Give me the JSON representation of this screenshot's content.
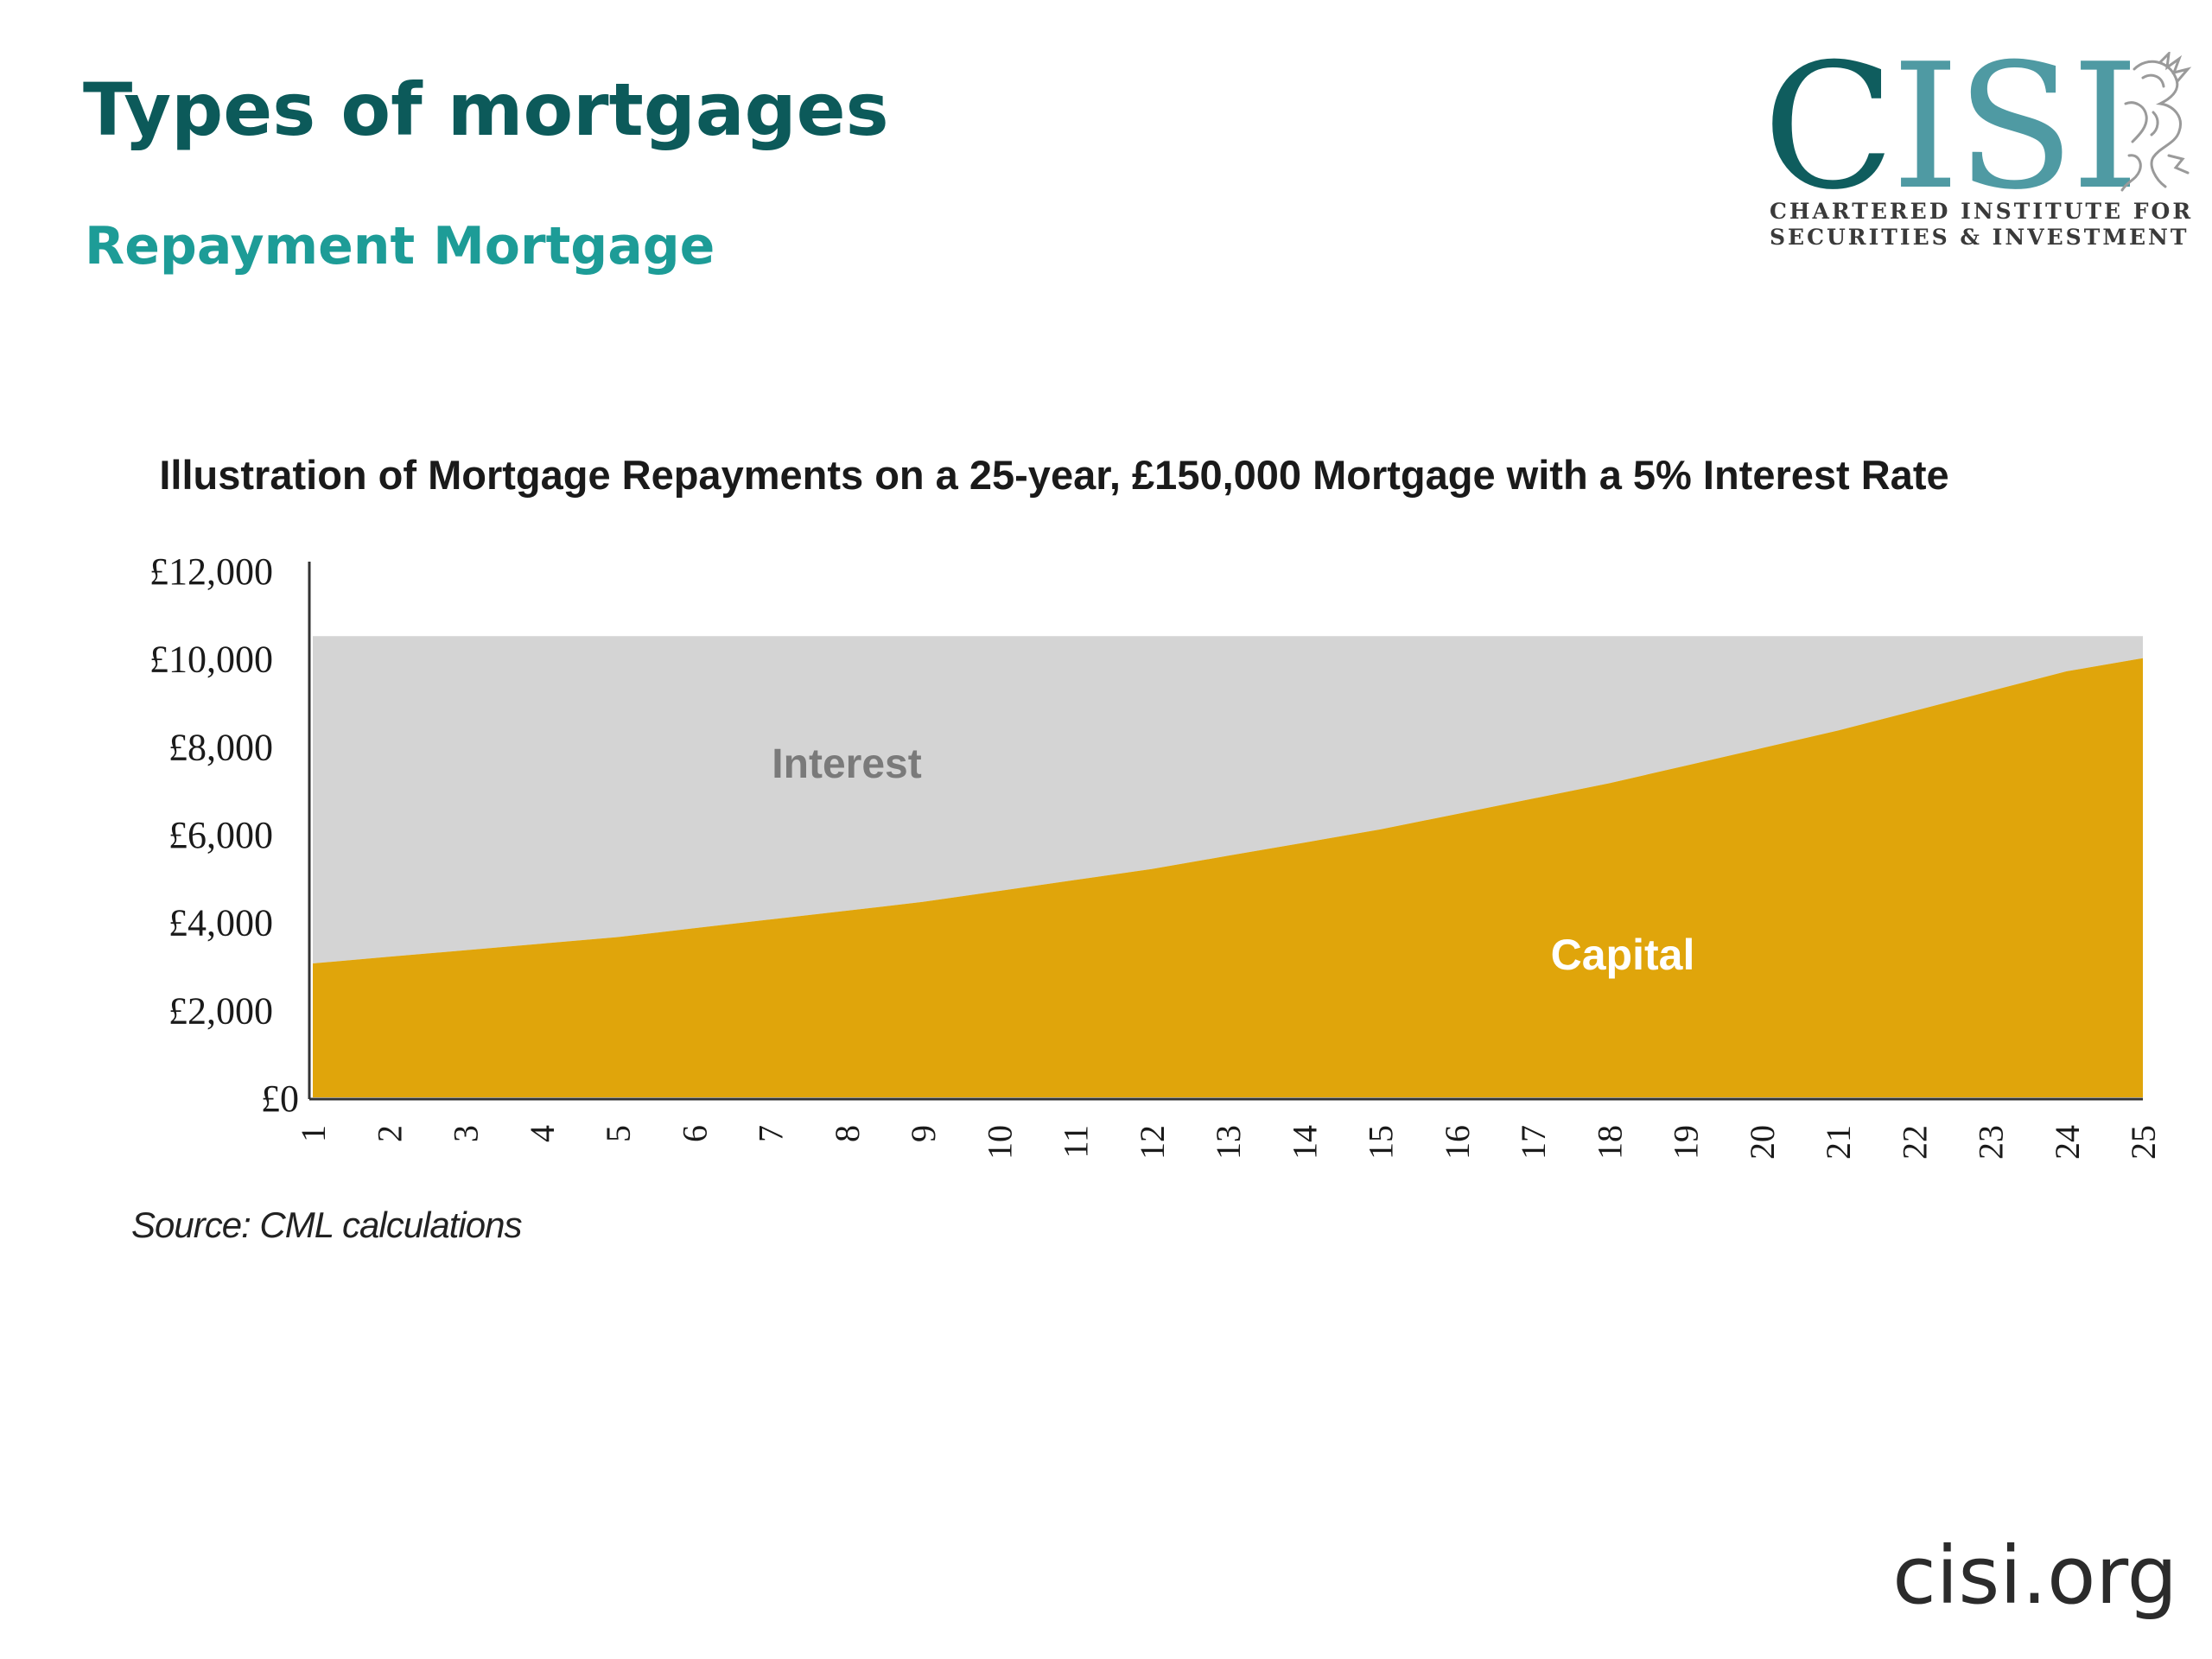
{
  "slide": {
    "title": "Types of mortgages",
    "subtitle": "Repayment Mortgage",
    "footer_url": "cisi.org"
  },
  "logo": {
    "word_c": "C",
    "word_isi": "ISI",
    "line1": "CHARTERED INSTITUTE FOR",
    "line2": "SECURITIES & INVESTMENT",
    "icon": "griffin-icon",
    "colors": {
      "dark": "#0f5d5e",
      "light": "#4f9aa3"
    }
  },
  "chart_data": {
    "type": "area",
    "title": "Illustration of Mortgage Repayments on a 25-year, £150,000 Mortgage with a 5% Interest Rate",
    "source": "Source: CML calculations",
    "x": [
      1,
      2,
      3,
      4,
      5,
      6,
      7,
      8,
      9,
      10,
      11,
      12,
      13,
      14,
      15,
      16,
      17,
      18,
      19,
      20,
      21,
      22,
      23,
      24,
      25
    ],
    "ylim": [
      0,
      12000
    ],
    "yticks": [
      "£0",
      "£2,000",
      "£4,000",
      "£6,000",
      "£8,000",
      "£10,000",
      "£12,000"
    ],
    "ytick_values": [
      0,
      2000,
      4000,
      6000,
      8000,
      10000,
      12000
    ],
    "stacked": true,
    "series": [
      {
        "name": "Capital",
        "color": "#e0a50b",
        "values": [
          3050,
          3200,
          3350,
          3500,
          3650,
          3850,
          4050,
          4250,
          4450,
          4700,
          4950,
          5200,
          5500,
          5800,
          6100,
          6450,
          6800,
          7150,
          7550,
          7950,
          8350,
          8800,
          9250,
          9700,
          10000
        ]
      },
      {
        "name": "Interest",
        "color": "#d4d4d4",
        "values": [
          7450,
          7300,
          7150,
          7000,
          6850,
          6650,
          6450,
          6250,
          6050,
          5800,
          5550,
          5300,
          5000,
          4700,
          4400,
          4050,
          3700,
          3350,
          2950,
          2550,
          2150,
          1700,
          1250,
          800,
          500
        ]
      }
    ],
    "grid": false,
    "legend": "inline labels"
  }
}
